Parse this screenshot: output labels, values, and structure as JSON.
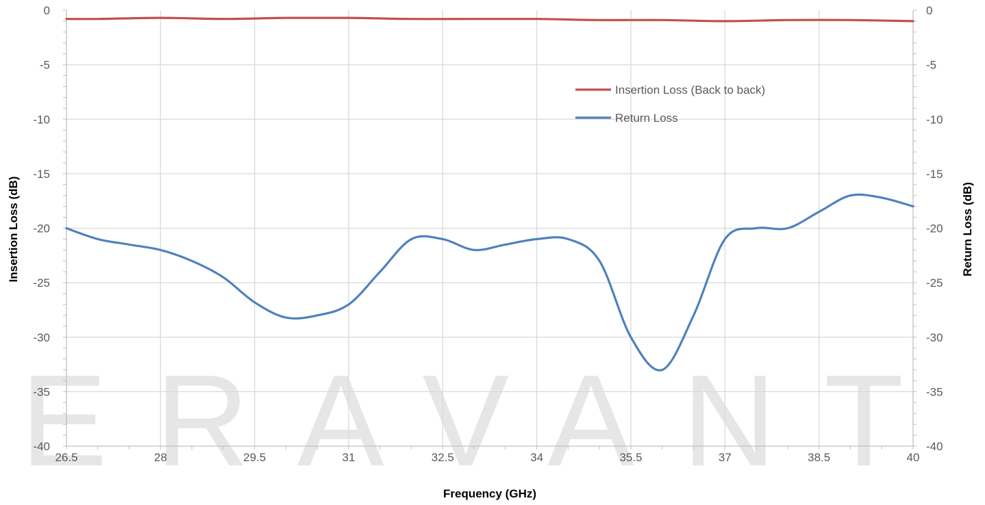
{
  "watermark": "ERAVANT",
  "chart_data": {
    "type": "line",
    "xlabel": "Frequency (GHz)",
    "ylabel": "Insertion Loss (dB)",
    "y2label": "Return Loss (dB)",
    "xlim": [
      26.5,
      40
    ],
    "ylim": [
      -40,
      0
    ],
    "y2lim": [
      -40,
      0
    ],
    "x_ticks": [
      "26.5",
      "28",
      "29.5",
      "31",
      "32.5",
      "34",
      "35.5",
      "37",
      "38.5",
      "40"
    ],
    "y_ticks": [
      "0",
      "-5",
      "-10",
      "-15",
      "-20",
      "-25",
      "-30",
      "-35",
      "-40"
    ],
    "y2_ticks": [
      "0",
      "-5",
      "-10",
      "-15",
      "-20",
      "-25",
      "-30",
      "-35",
      "-40"
    ],
    "grid": true,
    "legend_position": "upper-right-inside",
    "series": [
      {
        "name": "Insertion Loss (Back to back)",
        "axis": "left",
        "color": "#C0504D",
        "x": [
          26.5,
          27,
          28,
          29,
          30,
          31,
          32,
          33,
          34,
          35,
          36,
          37,
          38,
          39,
          40
        ],
        "y": [
          -0.8,
          -0.8,
          -0.7,
          -0.8,
          -0.7,
          -0.7,
          -0.8,
          -0.8,
          -0.8,
          -0.9,
          -0.9,
          -1.0,
          -0.9,
          -0.9,
          -1.0
        ]
      },
      {
        "name": "Return Loss",
        "axis": "right",
        "color": "#4F81BD",
        "x": [
          26.5,
          27,
          27.5,
          28,
          28.5,
          29,
          29.5,
          30,
          30.5,
          31,
          31.5,
          32,
          32.5,
          33,
          33.5,
          34,
          34.5,
          35,
          35.5,
          36,
          36.5,
          37,
          37.5,
          38,
          38.5,
          39,
          39.5,
          40
        ],
        "y": [
          -20,
          -21,
          -21.5,
          -22,
          -23,
          -24.5,
          -26.8,
          -28.2,
          -28,
          -27,
          -24,
          -21,
          -21,
          -22,
          -21.5,
          -21,
          -21,
          -23,
          -30,
          -33,
          -28,
          -21,
          -20,
          -20,
          -18.5,
          -17,
          -17.2,
          -18
        ]
      }
    ]
  }
}
